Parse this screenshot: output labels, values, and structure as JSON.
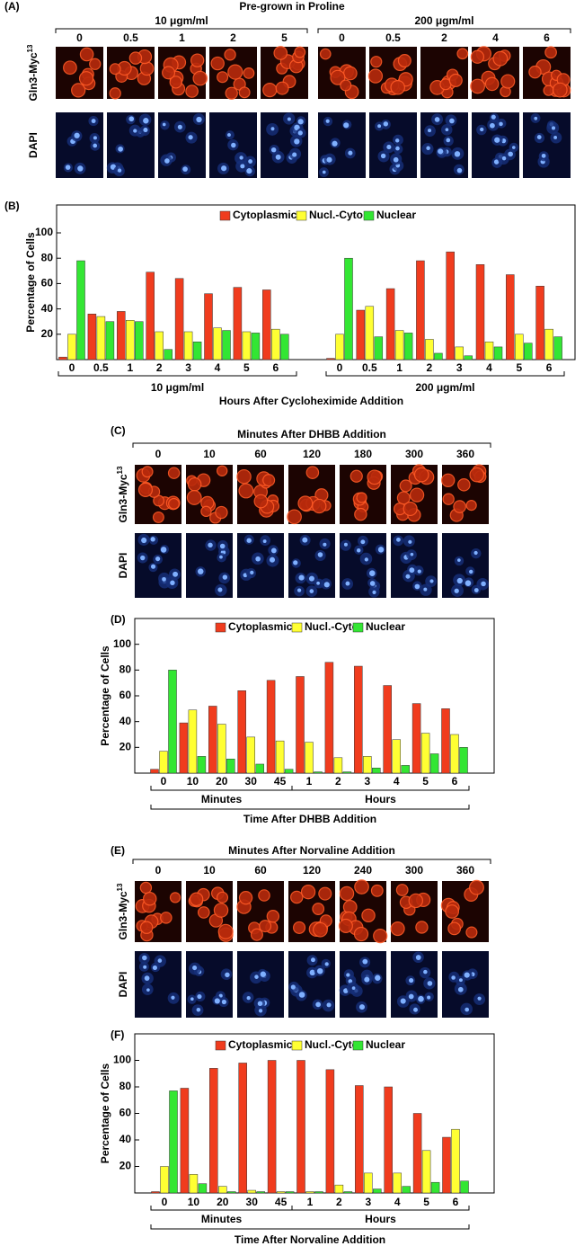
{
  "micrographs": [
    {
      "label": "(A)",
      "title": "Pre-grown in Proline",
      "groups": [
        {
          "label": "10 μgm/ml",
          "times": [
            "0",
            "0.5",
            "1",
            "2",
            "5"
          ]
        },
        {
          "label": "200 μgm/ml",
          "times": [
            "0",
            "0.5",
            "2",
            "4",
            "6"
          ]
        }
      ],
      "rows": [
        {
          "text": "Gln3-Myc",
          "sup": "13"
        },
        {
          "text": "DAPI"
        }
      ]
    },
    {
      "label": "(C)",
      "groups": [
        {
          "label": "Minutes After DHBB Addition",
          "times": [
            "0",
            "10",
            "60",
            "120",
            "180",
            "300",
            "360"
          ]
        }
      ],
      "rows": [
        {
          "text": "Gln3-Myc",
          "sup": "13"
        },
        {
          "text": "DAPI"
        }
      ]
    },
    {
      "label": "(E)",
      "groups": [
        {
          "label": "Minutes After Norvaline Addition",
          "times": [
            "0",
            "10",
            "60",
            "120",
            "240",
            "300",
            "360"
          ]
        }
      ],
      "rows": [
        {
          "text": "Gln3-Myc",
          "sup": "13"
        },
        {
          "text": "DAPI"
        }
      ]
    }
  ],
  "chart_data": [
    {
      "type": "bar",
      "label": "(B)",
      "ylabel": "Percentage of Cells",
      "xlabel": "Hours After Cycloheximide Addition",
      "categories": [
        "0",
        "0.5",
        "1",
        "2",
        "3",
        "4",
        "5",
        "6",
        "0",
        "0.5",
        "1",
        "2",
        "3",
        "4",
        "5",
        "6"
      ],
      "groups": [
        "10 μgm/ml",
        "200 μgm/ml"
      ],
      "series": [
        {
          "name": "Cytoplasmic",
          "color": "#f03c1e",
          "values": [
            2,
            36,
            38,
            69,
            64,
            52,
            57,
            55,
            1,
            39,
            56,
            78,
            85,
            75,
            67,
            58
          ]
        },
        {
          "name": "Nucl.-Cyto.",
          "color": "#ffff33",
          "values": [
            20,
            34,
            31,
            22,
            22,
            25,
            22,
            24,
            20,
            42,
            23,
            16,
            10,
            14,
            20,
            24
          ]
        },
        {
          "name": "Nuclear",
          "color": "#33e633",
          "values": [
            78,
            30,
            30,
            8,
            14,
            23,
            21,
            20,
            80,
            18,
            21,
            5,
            3,
            10,
            13,
            18
          ]
        }
      ],
      "ylim": [
        0,
        122
      ],
      "yticks": [
        20,
        40,
        60,
        80,
        100
      ]
    },
    {
      "type": "bar",
      "label": "(D)",
      "ylabel": "Percentage of Cells",
      "xlabel": "Time After DHBB Addition",
      "categories": [
        "0",
        "10",
        "20",
        "30",
        "45",
        "1",
        "2",
        "3",
        "4",
        "5",
        "6"
      ],
      "groups": [
        "Minutes",
        "Hours"
      ],
      "series": [
        {
          "name": "Cytoplasmic",
          "color": "#f03c1e",
          "values": [
            3,
            39,
            52,
            64,
            72,
            75,
            86,
            83,
            68,
            54,
            50
          ]
        },
        {
          "name": "Nucl.-Cyto.",
          "color": "#ffff33",
          "values": [
            17,
            49,
            38,
            28,
            25,
            24,
            12,
            13,
            26,
            31,
            30
          ]
        },
        {
          "name": "Nuclear",
          "color": "#33e633",
          "values": [
            80,
            13,
            11,
            7,
            3,
            1,
            1,
            4,
            6,
            15,
            20
          ]
        }
      ],
      "ylim": [
        0,
        120
      ],
      "yticks": [
        20,
        40,
        60,
        80,
        100
      ]
    },
    {
      "type": "bar",
      "label": "(F)",
      "ylabel": "Percentage of Cells",
      "xlabel": "Time After Norvaline Addition",
      "categories": [
        "0",
        "10",
        "20",
        "30",
        "45",
        "1",
        "2",
        "3",
        "4",
        "5",
        "6"
      ],
      "groups": [
        "Minutes",
        "Hours"
      ],
      "series": [
        {
          "name": "Cytoplasmic",
          "color": "#f03c1e",
          "values": [
            1,
            79,
            94,
            98,
            100,
            100,
            93,
            81,
            80,
            60,
            42
          ]
        },
        {
          "name": "Nucl.-Cyto.",
          "color": "#ffff33",
          "values": [
            20,
            14,
            5,
            2,
            1,
            1,
            6,
            15,
            15,
            32,
            48
          ]
        },
        {
          "name": "Nuclear",
          "color": "#33e633",
          "values": [
            77,
            7,
            1,
            1,
            1,
            1,
            1,
            3,
            5,
            8,
            9
          ]
        }
      ],
      "ylim": [
        0,
        120
      ],
      "yticks": [
        20,
        40,
        60,
        80,
        100
      ]
    }
  ]
}
